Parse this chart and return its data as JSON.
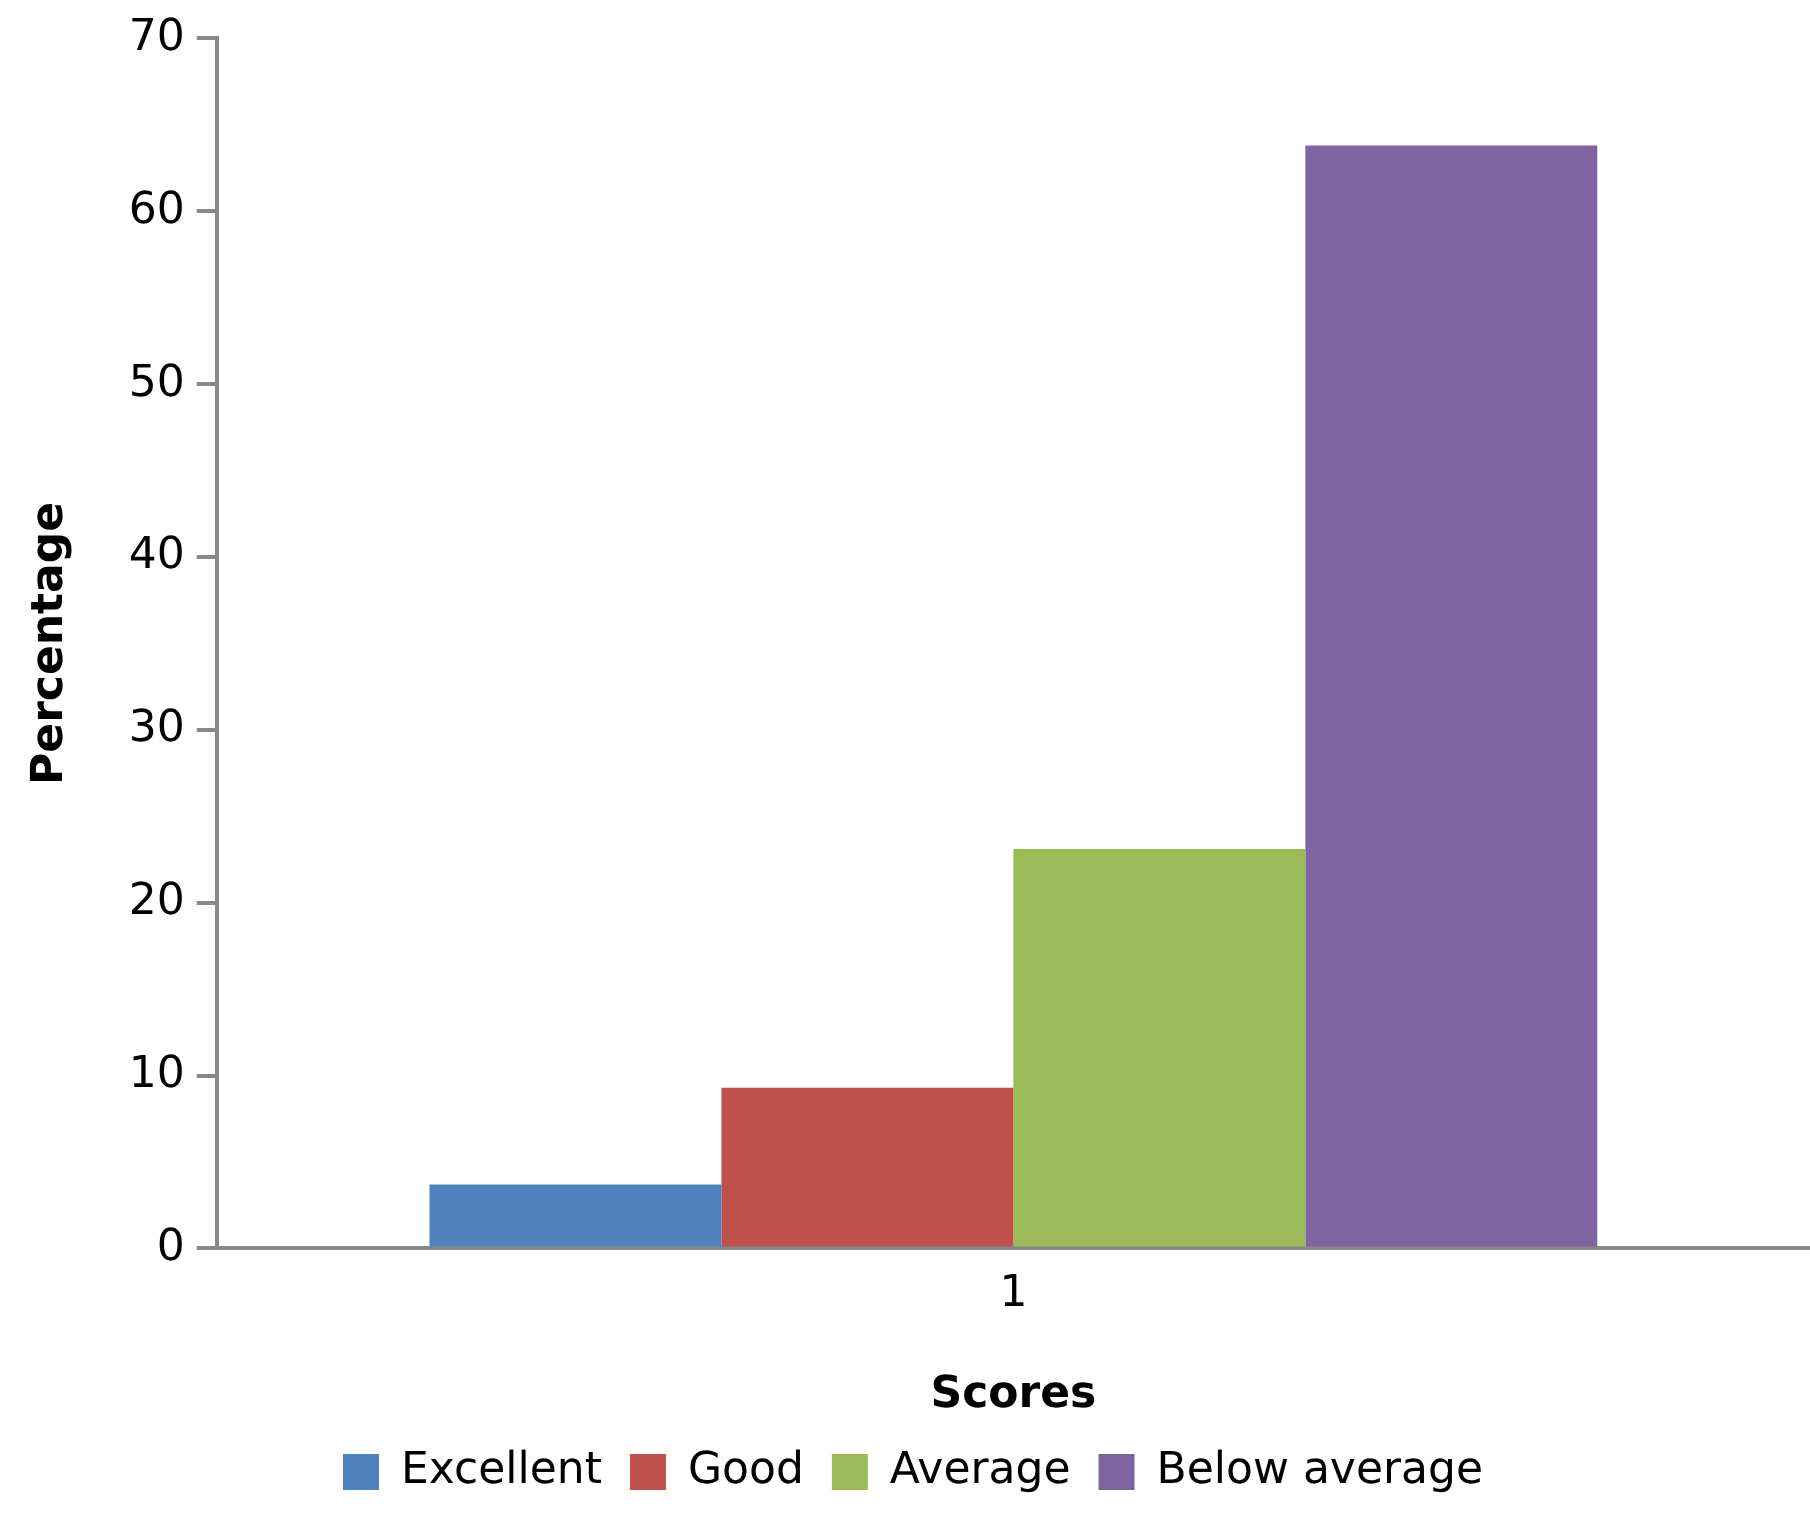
{
  "chart_data": {
    "type": "bar",
    "xlabel": "Scores",
    "ylabel": "Percentage",
    "categories": [
      "1"
    ],
    "series": [
      {
        "name": "Excellent",
        "color": "#4f81bd",
        "values": [
          3.7
        ]
      },
      {
        "name": "Good",
        "color": "#c0504d",
        "values": [
          9.3
        ]
      },
      {
        "name": "Average",
        "color": "#9bbb59",
        "values": [
          23.1
        ]
      },
      {
        "name": "Below average",
        "color": "#8064a2",
        "values": [
          63.8
        ]
      }
    ],
    "ylim": [
      0,
      70
    ],
    "yticks": [
      0,
      10,
      20,
      30,
      40,
      50,
      60,
      70
    ],
    "grid": false,
    "legend": "bottom"
  }
}
